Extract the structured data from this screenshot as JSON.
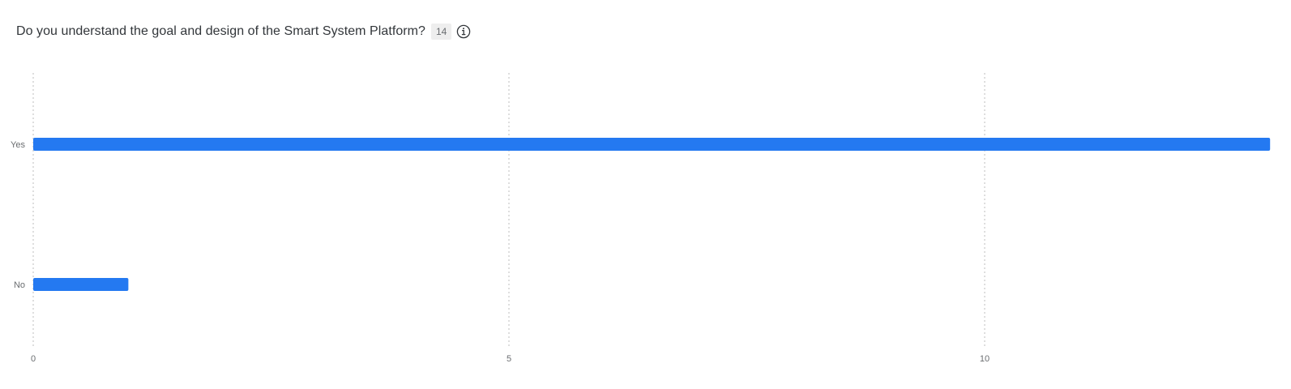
{
  "question": {
    "title": "Do you understand the goal and design of the Smart System Platform?",
    "response_count": "14",
    "info_icon": "info-circle-icon"
  },
  "colors": {
    "bar": "#2479f1",
    "grid": "#c9c9c9",
    "text": "#32363a",
    "muted": "#6a6d70"
  },
  "chart_data": {
    "type": "bar",
    "orientation": "horizontal",
    "categories": [
      "Yes",
      "No"
    ],
    "values": [
      13,
      1
    ],
    "title": "",
    "xlabel": "",
    "ylabel": "",
    "xlim": [
      0,
      13
    ],
    "xticks": [
      0,
      5,
      10
    ],
    "grid": true,
    "legend": "none"
  }
}
